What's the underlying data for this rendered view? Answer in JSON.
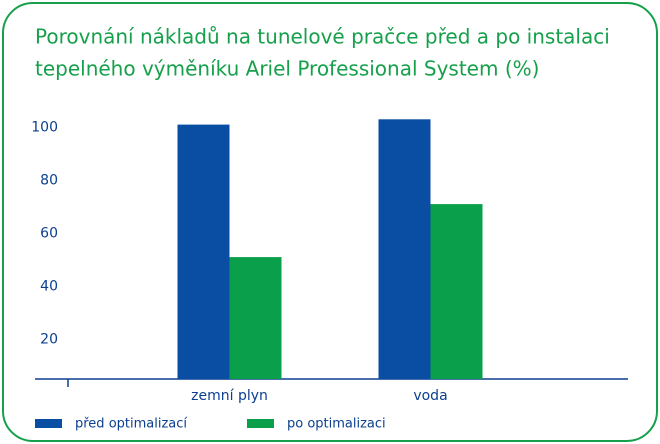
{
  "chart_data": {
    "type": "bar",
    "title": [
      "Porovnání nákladů na tunelové pračce před a po instalaci",
      "tepelného výměníku Ariel Professional System (%)"
    ],
    "categories": [
      "zemní plyn",
      "voda"
    ],
    "series": [
      {
        "name": "před optimalizací",
        "color": "#0a4ea3",
        "values": [
          101,
          103
        ]
      },
      {
        "name": "po optimalizaci",
        "color": "#0aa04b",
        "values": [
          51,
          71
        ]
      }
    ],
    "ylim": [
      5,
      105
    ],
    "yticks": [
      20,
      40,
      60,
      80,
      100
    ]
  }
}
